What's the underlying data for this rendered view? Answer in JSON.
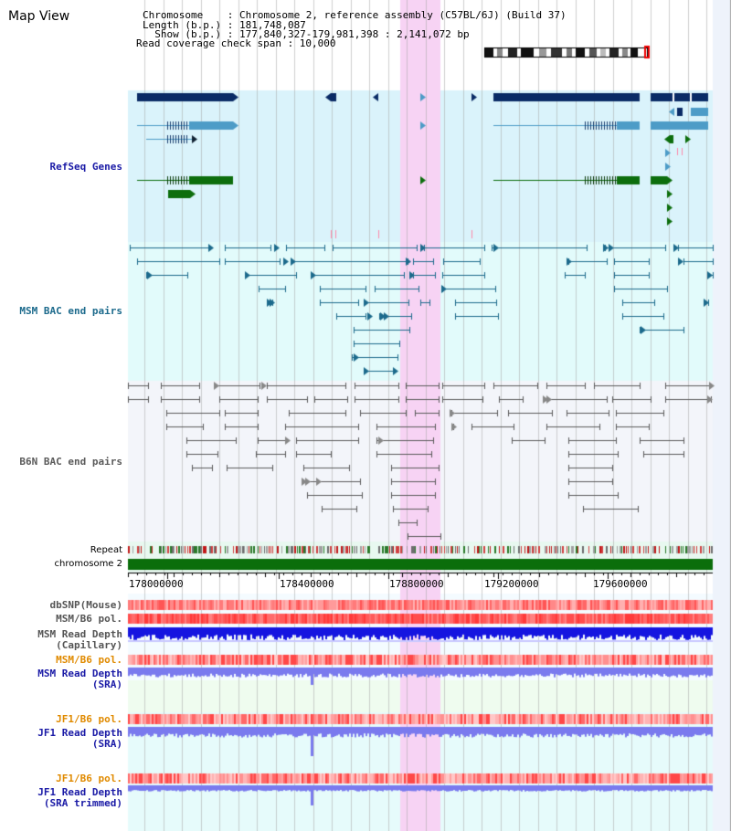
{
  "page": {
    "title": "Map View"
  },
  "header": {
    "line1": "Chromosome    : Chromosome 2, reference assembly (C57BL/6J) (Build 37)",
    "line2": "Length (b.p.) : 181,748,087",
    "line3": "  Show (b.p.) : 177,840,327-179,981,398 : 2,141,072 bp",
    "line4": "Read coverage check span : 10,000"
  },
  "tracks": {
    "refseq": "RefSeq Genes",
    "msm_bac": "MSM BAC end pairs",
    "b6n_bac": "B6N BAC end pairs",
    "repeat": "Repeat",
    "chromosome": "chromosome 2",
    "dbsnp": "dbSNP(Mouse)",
    "msm_pol": "MSM/B6 pol.",
    "msm_depth_cap_1": "MSM Read Depth",
    "msm_depth_cap_2": "(Capillary)",
    "msm_pol2": "MSM/B6 pol.",
    "msm_depth_sra_1": "MSM Read Depth",
    "msm_depth_sra_2": "(SRA)",
    "jf1_pol": "JF1/B6 pol.",
    "jf1_depth_1": "JF1 Read Depth",
    "jf1_depth_2": "(SRA)",
    "jf1_pol2": "JF1/B6 pol.",
    "jf1_trim_1": "JF1 Read Depth",
    "jf1_trim_2": "(SRA trimmed)"
  },
  "axis": {
    "ticks": [
      "178000000",
      "178400000",
      "178800000",
      "179200000",
      "179600000"
    ]
  },
  "colors": {
    "refseq_bg": "#daf3fb",
    "msm_bac_bg": "#e2fbfb",
    "b6n_bac_bg": "#f3f5fa",
    "highlight": "#f7d3f4",
    "refseq_label": "#1a1aa6",
    "msm_label": "#1c6a8c",
    "b6n_label": "#5a5a5a",
    "orange_label": "#e08a00",
    "dark_gene": "#0a2b66",
    "light_gene": "#4d9cc7",
    "green_gene": "#0d6e0d",
    "chrom_green": "#0b6e0b",
    "depth_blue": "#1515e0",
    "depth_lavender": "#7a7aee"
  }
}
